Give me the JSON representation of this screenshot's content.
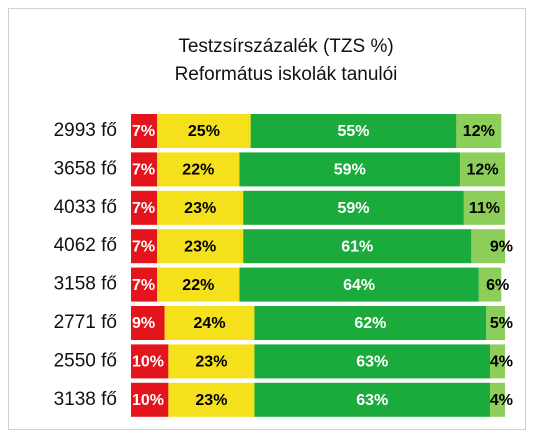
{
  "chart_data": {
    "type": "stacked-bar-horizontal",
    "title": "Testzsírszázalék (TZS %)",
    "subtitle": "Református iskolák tanulói",
    "categories": [
      "2993 fő",
      "3658 fő",
      "4033 fő",
      "4062 fő",
      "3158 fő",
      "2771 fő",
      "2550 fő",
      "3138 fő"
    ],
    "xlim": [
      0,
      100
    ],
    "series": [
      {
        "color": "#e3141b",
        "label_color": "#ffffff",
        "values": [
          7,
          7,
          7,
          7,
          7,
          9,
          10,
          10
        ],
        "value_labels": [
          "7%",
          "7%",
          "7%",
          "7%",
          "7%",
          "9%",
          "10%",
          "10%"
        ]
      },
      {
        "color": "#f5e11b",
        "label_color": "#000000",
        "values": [
          25,
          22,
          23,
          23,
          22,
          24,
          23,
          23
        ],
        "value_labels": [
          "25%",
          "22%",
          "23%",
          "23%",
          "22%",
          "24%",
          "23%",
          "23%"
        ]
      },
      {
        "color": "#1aab3c",
        "label_color": "#ffffff",
        "values": [
          55,
          59,
          59,
          61,
          64,
          62,
          63,
          63
        ],
        "value_labels": [
          "55%",
          "59%",
          "59%",
          "61%",
          "64%",
          "62%",
          "63%",
          "63%"
        ]
      },
      {
        "color": "#8dce5a",
        "label_color": "#000000",
        "values": [
          12,
          12,
          11,
          9,
          6,
          5,
          4,
          4
        ],
        "value_labels": [
          "12%",
          "12%",
          "11%",
          "9%",
          "6%",
          "5%",
          "4%",
          "4%"
        ]
      }
    ]
  }
}
